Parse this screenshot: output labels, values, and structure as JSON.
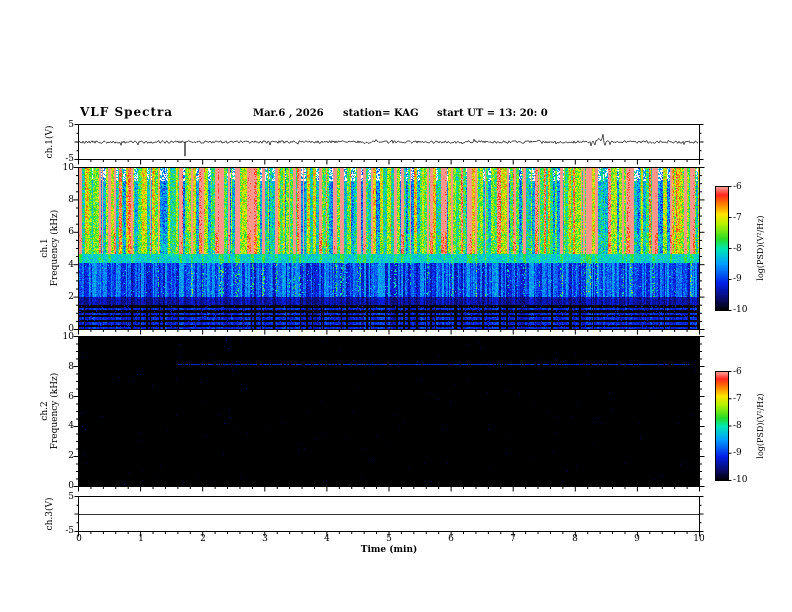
{
  "header": {
    "title": "VLF  Spectra",
    "date": "Mar.6 , 2026",
    "station": "station= KAG",
    "start_ut": "start UT =  13: 20: 0"
  },
  "panels": {
    "ch1_wave": {
      "ylabel": "ch.1(V)",
      "ymin": -5,
      "ymax": 5,
      "yticks": [
        5,
        -5
      ]
    },
    "ch1_spec": {
      "ch": "ch.1",
      "axis": "Frequency (kHz)",
      "ymin": 0,
      "ymax": 10,
      "yticks": [
        10,
        8,
        6,
        4,
        2,
        0
      ]
    },
    "ch2_spec": {
      "ch": "ch.2",
      "axis": "Frequency (kHz)",
      "ymin": 0,
      "ymax": 10,
      "yticks": [
        10,
        8,
        6,
        4,
        2,
        0
      ]
    },
    "ch3_wave": {
      "ylabel": "ch.3(V)",
      "ymin": -5,
      "ymax": 5,
      "yticks": [
        5,
        -5
      ]
    },
    "xaxis": {
      "label": "Time (min)",
      "min": 0,
      "max": 10,
      "ticks": [
        0,
        1,
        2,
        3,
        4,
        5,
        6,
        7,
        8,
        9,
        10
      ]
    }
  },
  "colorbars": [
    {
      "label": "log(PSD)(V²/Hz)",
      "ticks": [
        -6,
        -7,
        -8,
        -9,
        -10
      ],
      "zmin": -10,
      "zmax": -6
    },
    {
      "label": "log(PSD)(V²/Hz)",
      "ticks": [
        -6,
        -7,
        -8,
        -9,
        -10
      ],
      "zmin": -10,
      "zmax": -6
    }
  ],
  "chart_data": [
    {
      "type": "line",
      "name": "ch1_voltage_waveform",
      "ylabel": "ch.1(V)",
      "x_range": [
        0,
        10
      ],
      "y_range": [
        -5,
        5
      ],
      "baseline_V": 0,
      "noise_amplitude_V": 0.4,
      "events": [
        {
          "t_min": 1.71,
          "peak_V": -4.3,
          "kind": "impulse-spike"
        },
        {
          "t_min": 8.37,
          "peak_V": 1.2,
          "kind": "noise-burst"
        }
      ]
    },
    {
      "type": "heatmap",
      "name": "ch1_spectrogram",
      "xlabel": "Time (min)",
      "ylabel": "Frequency (kHz)",
      "x_range": [
        0,
        10
      ],
      "y_range": [
        0,
        10
      ],
      "z_label": "log(PSD)(V²/Hz)",
      "z_range": [
        -10,
        -6
      ],
      "colormap": "jet-black-floor",
      "features": [
        {
          "band_kHz": [
            4.7,
            10
          ],
          "z_typical": [
            -8.5,
            -6
          ],
          "description": "dense impulsive vertical striations (sferics), red peaks reaching -6 up to 10 kHz"
        },
        {
          "band_kHz": [
            4.15,
            4.7
          ],
          "z_typical": [
            -8.5,
            -7.8
          ],
          "description": "quasi-steady cyan/green horizontal band"
        },
        {
          "band_kHz": [
            2.0,
            4.15
          ],
          "z_typical": [
            -9.6,
            -8.8
          ],
          "description": "diffuse blue background with vertical striping"
        },
        {
          "band_kHz": [
            0,
            2.0
          ],
          "z_typical": [
            -10,
            -9.4
          ],
          "description": "dark region with horizontal black banding"
        }
      ]
    },
    {
      "type": "heatmap",
      "name": "ch2_spectrogram",
      "xlabel": "Time (min)",
      "ylabel": "Frequency (kHz)",
      "x_range": [
        0,
        10
      ],
      "y_range": [
        0,
        10
      ],
      "z_label": "log(PSD)(V²/Hz)",
      "z_range": [
        -10,
        -6
      ],
      "background_z": -10,
      "features": [
        {
          "kind": "narrowband-line",
          "freq_kHz": 8.2,
          "t_range_min": [
            1.6,
            9.85
          ],
          "z": -8.8,
          "description": "faint blue horizontal narrowband line, otherwise black panel"
        }
      ]
    },
    {
      "type": "line",
      "name": "ch3_voltage_waveform",
      "ylabel": "ch.3(V)",
      "x_range": [
        0,
        10
      ],
      "y_range": [
        -5,
        5
      ],
      "constant_V": 0
    }
  ]
}
